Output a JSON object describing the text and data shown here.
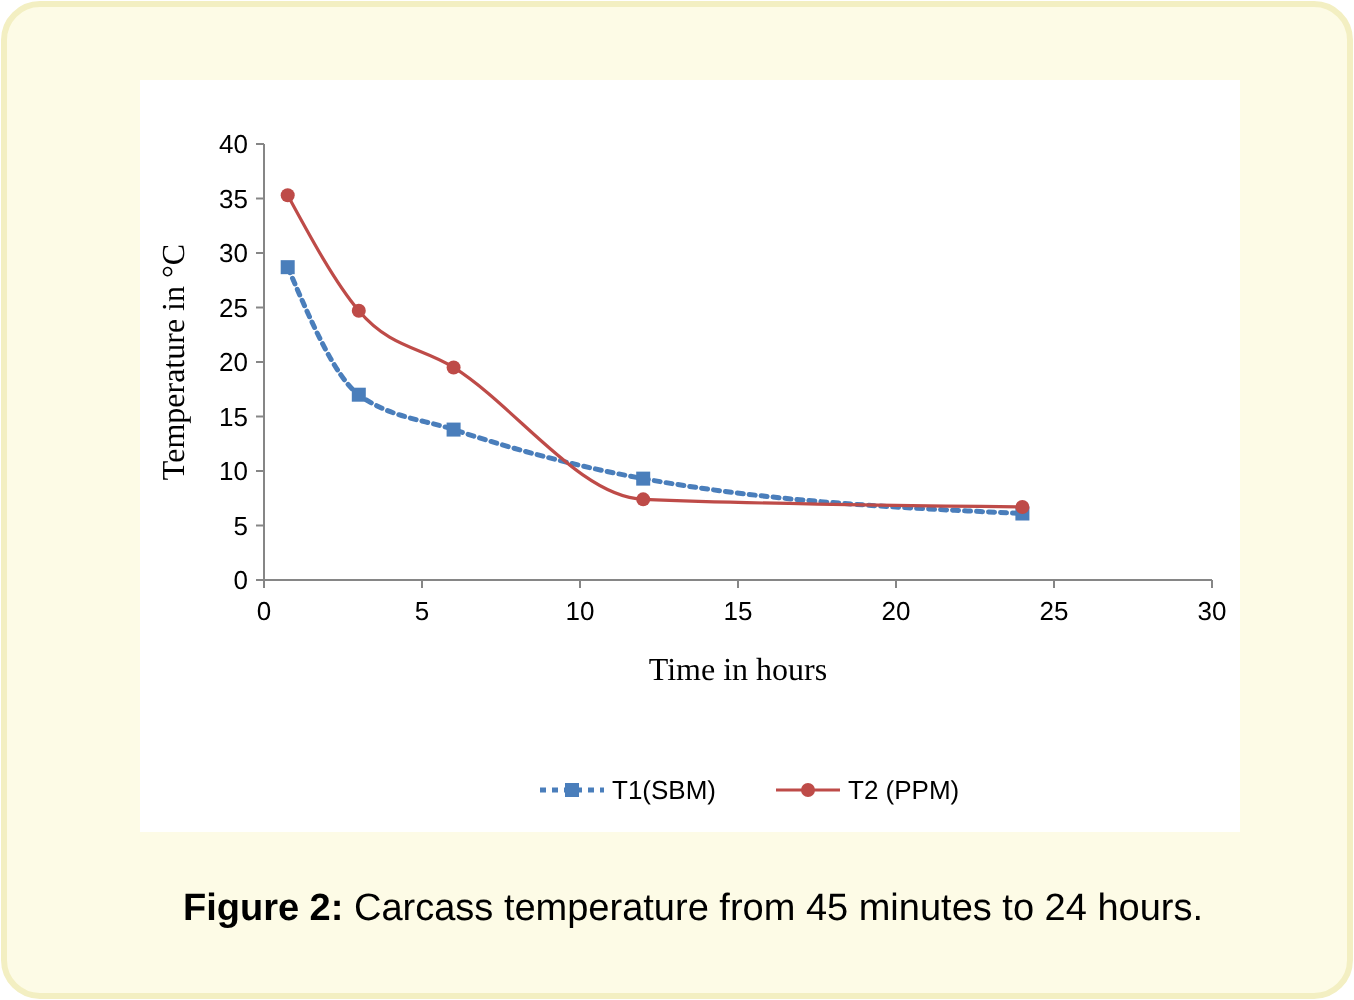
{
  "chart_data": {
    "type": "line",
    "title": "Figure 2: Carcass temperature from 45 minutes to 24 hours.",
    "xlabel": "Time in hours",
    "ylabel": "Temperature in °C",
    "x": [
      0.75,
      3,
      6,
      12,
      24
    ],
    "series": [
      {
        "name": "T1(SBM)",
        "color": "#4a7ebb",
        "values": [
          28.7,
          17,
          13.8,
          9.3,
          6.1
        ],
        "marker": "square",
        "line_style": "dotted"
      },
      {
        "name": "T2 (PPM)",
        "color": "#be4b48",
        "values": [
          35.3,
          24.7,
          19.5,
          7.4,
          6.7
        ],
        "marker": "circle",
        "line_style": "solid"
      }
    ],
    "xlim": [
      0,
      30
    ],
    "xticks": [
      0,
      5,
      10,
      15,
      20,
      25,
      30
    ],
    "ylim": [
      0,
      40
    ],
    "yticks": [
      0,
      5,
      10,
      15,
      20,
      25,
      30,
      35,
      40
    ],
    "grid": false,
    "legend": "bottom"
  }
}
